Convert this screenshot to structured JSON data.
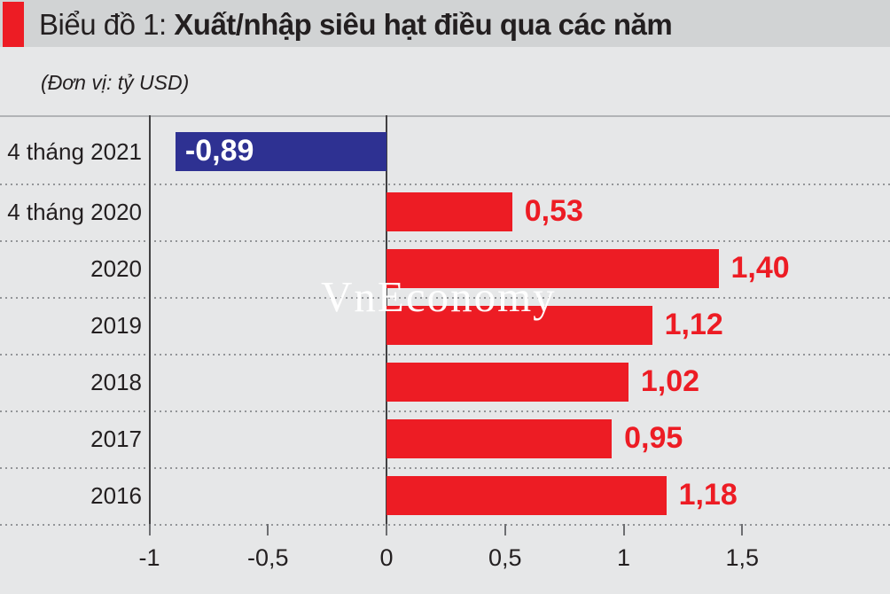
{
  "header": {
    "title_prefix": "Biểu đồ 1: ",
    "title_main": "Xuất/nhập siêu hạt điều qua các năm",
    "subtitle": "(Đơn vị: tỷ USD)"
  },
  "watermark": "VnEconomy",
  "colors": {
    "positive_bar": "#ed1c24",
    "negative_bar": "#2e3192",
    "header_band": "#d1d3d4",
    "background": "#e6e7e8",
    "accent_red": "#ed1c24",
    "text": "#231f20"
  },
  "chart_data": {
    "type": "bar",
    "orientation": "horizontal",
    "title": "Biểu đồ 1: Xuất/nhập siêu hạt điều qua các năm",
    "unit": "tỷ USD",
    "categories": [
      "4 tháng 2021",
      "4 tháng 2020",
      "2020",
      "2019",
      "2018",
      "2017",
      "2016"
    ],
    "values": [
      -0.89,
      0.53,
      1.4,
      1.12,
      1.02,
      0.95,
      1.18
    ],
    "value_labels": [
      "-0,89",
      "0,53",
      "1,40",
      "1,12",
      "1,02",
      "0,95",
      "1,18"
    ],
    "xlim": [
      -1,
      2.12
    ],
    "x_ticks": [
      -1,
      -0.5,
      0,
      0.5,
      1,
      1.5
    ],
    "x_tick_labels": [
      "-1",
      "-0,5",
      "0",
      "0,5",
      "1",
      "1,5"
    ],
    "grid": "horizontal-dotted",
    "legend": "none",
    "negative_color": "#2e3192",
    "positive_color": "#ed1c24"
  }
}
